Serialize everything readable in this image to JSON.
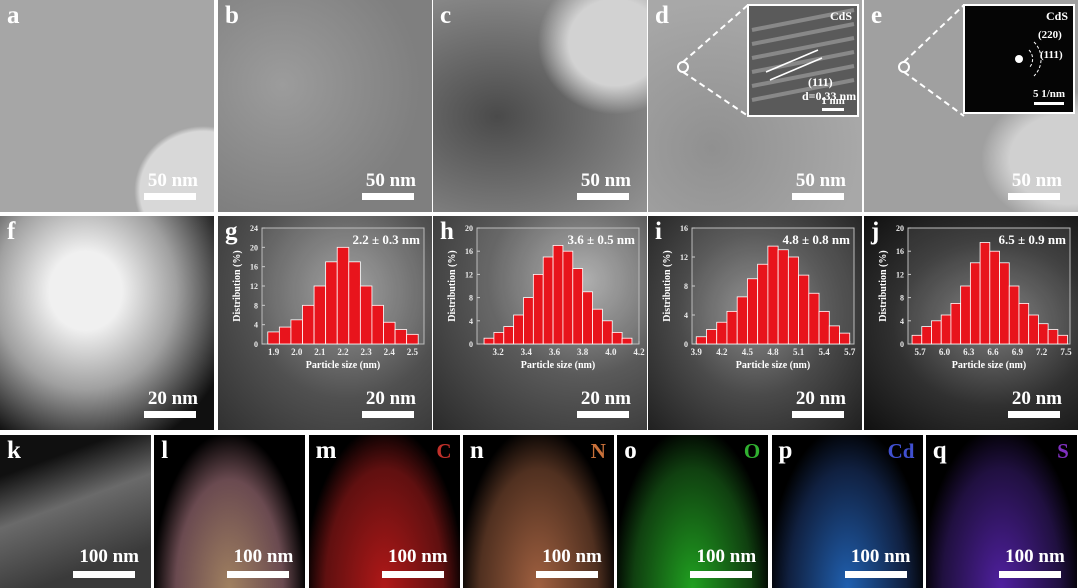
{
  "panels": [
    {
      "label": "a",
      "scale_bar": "50 nm"
    },
    {
      "label": "b",
      "scale_bar": "50 nm"
    },
    {
      "label": "c",
      "scale_bar": "50 nm"
    },
    {
      "label": "d",
      "scale_bar": "50 nm",
      "inset": {
        "title": "CdS",
        "plane": "(111)",
        "d_spacing": "d=0.33 nm",
        "scale_bar": "1 nm"
      }
    },
    {
      "label": "e",
      "scale_bar": "50 nm",
      "inset": {
        "title": "CdS",
        "rings": [
          "(220)",
          "(111)"
        ],
        "scale_bar": "5 1/nm"
      }
    },
    {
      "label": "f",
      "scale_bar": "20 nm"
    },
    {
      "label": "g",
      "scale_bar": "20 nm"
    },
    {
      "label": "h",
      "scale_bar": "20 nm"
    },
    {
      "label": "i",
      "scale_bar": "20 nm"
    },
    {
      "label": "j",
      "scale_bar": "20 nm"
    },
    {
      "label": "k",
      "scale_bar": "100 nm"
    },
    {
      "label": "l",
      "scale_bar": "100 nm"
    },
    {
      "label": "m",
      "scale_bar": "100 nm",
      "element": "C",
      "element_color": "#c0302a"
    },
    {
      "label": "n",
      "scale_bar": "100 nm",
      "element": "N",
      "element_color": "#c8703a"
    },
    {
      "label": "o",
      "scale_bar": "100 nm",
      "element": "O",
      "element_color": "#30b030"
    },
    {
      "label": "p",
      "scale_bar": "100 nm",
      "element": "Cd",
      "element_color": "#4050d0"
    },
    {
      "label": "q",
      "scale_bar": "100 nm",
      "element": "S",
      "element_color": "#8030c0"
    }
  ],
  "chart_data": [
    {
      "type": "histogram",
      "annotation": "2.2 ± 0.3 nm",
      "xlabel": "Particle size (nm)",
      "ylabel": "Distribution (%)",
      "color": "#e8141c",
      "bins": [
        1.875,
        1.925,
        1.975,
        2.025,
        2.075,
        2.125,
        2.175,
        2.225,
        2.275,
        2.325,
        2.375,
        2.425,
        2.475,
        2.525
      ],
      "values": [
        2.5,
        3.5,
        5,
        8,
        12,
        17,
        20,
        17,
        12,
        8,
        4.5,
        3,
        2
      ],
      "xlim": [
        1.85,
        2.55
      ],
      "xticks": [
        1.9,
        {
          "value": 2,
          "label": "2.0"
        },
        2.1,
        2.2,
        2.3,
        2.4,
        2.5
      ],
      "ylim": [
        0,
        24
      ],
      "yticks": [
        0,
        4,
        8,
        12,
        16,
        20,
        24
      ]
    },
    {
      "type": "histogram",
      "annotation": "3.6 ± 0.5 nm",
      "xlabel": "Particle size (nm)",
      "ylabel": "Distribution (%)",
      "color": "#e8141c",
      "bins": [
        3.1,
        3.17,
        3.24,
        3.31,
        3.38,
        3.45,
        3.52,
        3.59,
        3.66,
        3.73,
        3.8,
        3.87,
        3.94,
        4.01,
        4.08,
        4.15
      ],
      "values": [
        1,
        2,
        3,
        5,
        8,
        12,
        15,
        17,
        16,
        13,
        9,
        6,
        4,
        2,
        1
      ],
      "xlim": [
        3.05,
        4.2
      ],
      "xticks": [
        3.2,
        3.4,
        3.6,
        3.8,
        {
          "value": 4,
          "label": "4.0"
        },
        4.2
      ],
      "ylim": [
        0,
        20
      ],
      "yticks": [
        0,
        4,
        8,
        12,
        16,
        20
      ]
    },
    {
      "type": "histogram",
      "annotation": "4.8 ± 0.8 nm",
      "xlabel": "Particle size (nm)",
      "ylabel": "Distribution (%)",
      "color": "#e8141c",
      "bins": [
        3.9,
        4.02,
        4.14,
        4.26,
        4.38,
        4.5,
        4.62,
        4.74,
        4.86,
        4.98,
        5.1,
        5.22,
        5.34,
        5.46,
        5.58,
        5.7
      ],
      "values": [
        1,
        2,
        3,
        4.5,
        6.5,
        9,
        11,
        13.5,
        13,
        12,
        9.5,
        7,
        4.5,
        2.5,
        1.5
      ],
      "xlim": [
        3.85,
        5.75
      ],
      "xticks": [
        3.9,
        4.2,
        4.5,
        4.8,
        5.1,
        5.4,
        5.7
      ],
      "ylim": [
        0,
        16
      ],
      "yticks": [
        0,
        4,
        8,
        12,
        16
      ]
    },
    {
      "type": "histogram",
      "annotation": "6.5 ± 0.9 nm",
      "xlabel": "Particle size (nm)",
      "ylabel": "Distribution (%)",
      "color": "#e8141c",
      "bins": [
        5.6,
        5.72,
        5.84,
        5.96,
        6.08,
        6.2,
        6.32,
        6.44,
        6.56,
        6.68,
        6.8,
        6.92,
        7.04,
        7.16,
        7.28,
        7.4,
        7.52
      ],
      "values": [
        1.5,
        3,
        4,
        5,
        7,
        10,
        14,
        17.5,
        16,
        14,
        10,
        7,
        5,
        3.5,
        2.5,
        1.5
      ],
      "xlim": [
        5.55,
        7.55
      ],
      "xticks": [
        5.7,
        {
          "value": 6,
          "label": "6.0"
        },
        6.3,
        6.6,
        6.9,
        7.2,
        7.5
      ],
      "ylim": [
        0,
        20
      ],
      "yticks": [
        0,
        4,
        8,
        12,
        16,
        20
      ]
    }
  ]
}
